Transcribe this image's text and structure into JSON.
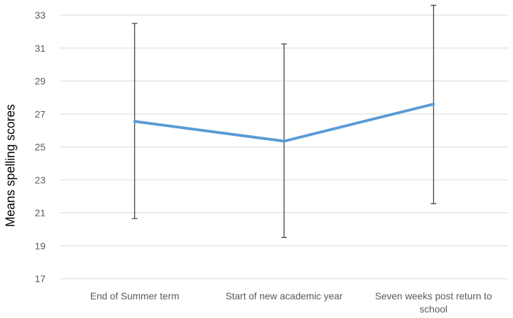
{
  "chart_data": {
    "type": "line",
    "title": "",
    "xlabel": "",
    "ylabel": "Means spelling scores",
    "ylim": [
      17,
      33
    ],
    "yticks": [
      17,
      19,
      21,
      23,
      25,
      27,
      29,
      31,
      33
    ],
    "categories": [
      [
        "End of Summer term"
      ],
      [
        "Start of new academic year"
      ],
      [
        "Seven weeks post return to",
        "school"
      ]
    ],
    "series": [
      {
        "values": [
          26.55,
          25.35,
          27.6
        ],
        "error_low": [
          20.65,
          19.5,
          21.55
        ],
        "error_high": [
          32.5,
          31.25,
          33.6
        ],
        "color": "#5b9bd5"
      }
    ],
    "grid": true,
    "legend": "none"
  }
}
